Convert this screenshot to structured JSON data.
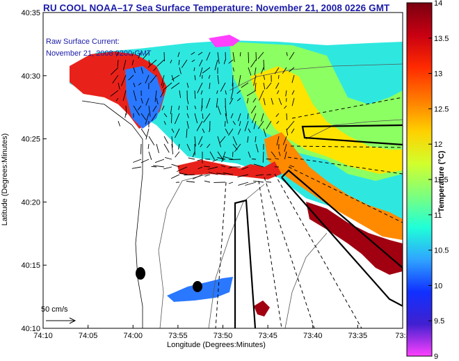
{
  "title": "RU COOL  NOAA–17  Sea Surface Temperature:  November 21, 2008 0226 GMT",
  "axes": {
    "xlabel": "Longitude (Degrees:Minutes)",
    "ylabel": "Latitude (Degrees:Minutes)",
    "x_ticks": [
      "74:10",
      "74:05",
      "74:00",
      "73:55",
      "73:50",
      "73:45",
      "73:40",
      "73:35",
      "73:3"
    ],
    "y_ticks": [
      "40:35",
      "40:30",
      "40:25",
      "40:20",
      "40:15",
      "40:10"
    ]
  },
  "annotation": {
    "line1": "Raw Surface Current:",
    "line2": "November 21, 2008 0200 GMT"
  },
  "scale": {
    "label": "50 cm/s"
  },
  "colorbar": {
    "label": "Temperature (°C)",
    "ticks": [
      "14",
      "13.5",
      "13",
      "12.5",
      "12",
      "11.5",
      "11",
      "10.5",
      "10",
      "9.5",
      "9"
    ],
    "colors": [
      "#7a0010",
      "#c80012",
      "#ff2a00",
      "#ff7a00",
      "#ffd000",
      "#d2ff2c",
      "#7dff7d",
      "#1fffd8",
      "#2fa4ff",
      "#1030ff",
      "#4020d0",
      "#ff40ff"
    ]
  }
}
